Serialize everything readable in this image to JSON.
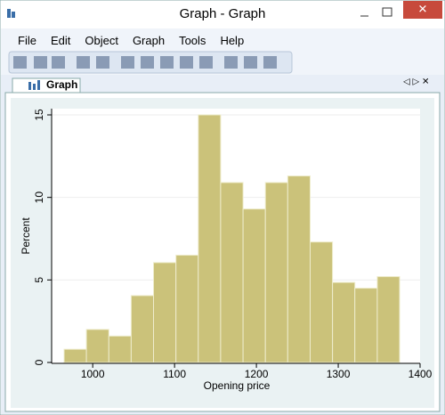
{
  "window": {
    "title": "Graph - Graph",
    "menu": [
      "File",
      "Edit",
      "Object",
      "Graph",
      "Tools",
      "Help"
    ],
    "tab": "Graph"
  },
  "chart_data": {
    "type": "histogram",
    "xlabel": "Opening price",
    "ylabel": "Percent",
    "bins": [
      965,
      992.3,
      1019.7,
      1047,
      1074.3,
      1101.7,
      1129,
      1156.3,
      1183.7,
      1211,
      1238.3,
      1265.7,
      1293,
      1320.3,
      1347.7,
      1375
    ],
    "values": [
      0.8,
      2.0,
      1.6,
      4.05,
      6.05,
      6.5,
      15.0,
      10.9,
      9.3,
      10.9,
      11.3,
      7.3,
      4.85,
      4.5,
      5.2
    ],
    "color": "#cbc27a",
    "xlim": [
      965,
      1400
    ],
    "ylim": [
      0,
      15
    ],
    "xticks": [
      1000,
      1100,
      1200,
      1300,
      1400
    ],
    "yticks": [
      0,
      5,
      10,
      15
    ],
    "grid": true
  }
}
